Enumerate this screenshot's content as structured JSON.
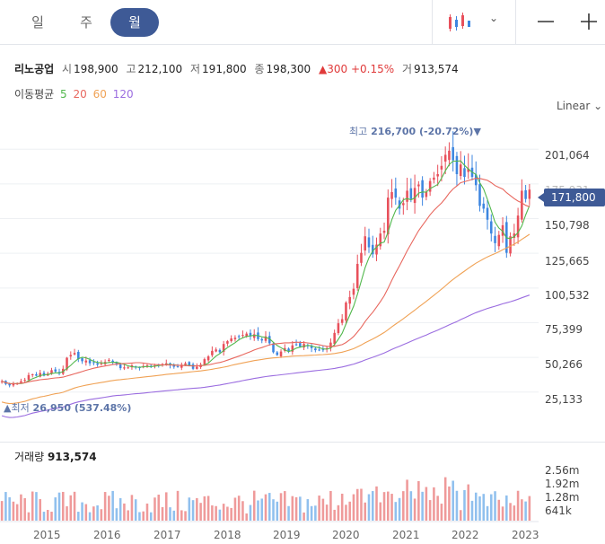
{
  "period_tabs": [
    {
      "label": "일",
      "active": false
    },
    {
      "label": "주",
      "active": false
    },
    {
      "label": "월",
      "active": true
    }
  ],
  "stock": {
    "name": "리노공업",
    "open_label": "시",
    "open": "198,900",
    "high_label": "고",
    "high": "212,100",
    "low_label": "저",
    "low": "191,800",
    "close_label": "종",
    "close": "198,300",
    "change": "▲300 +0.15%",
    "volume_label": "거",
    "volume": "913,574"
  },
  "ma_legend": {
    "label": "이동평균",
    "items": [
      {
        "label": "5",
        "color": "#52b84d"
      },
      {
        "label": "20",
        "color": "#e8675e"
      },
      {
        "label": "60",
        "color": "#f0a255"
      },
      {
        "label": "120",
        "color": "#9b6de0"
      }
    ]
  },
  "scale_mode": "Linear ⌄",
  "colors": {
    "up": "#e8505b",
    "down": "#3d86e0",
    "accent": "#3e5a96",
    "vol_up": "#ef9a9a",
    "vol_down": "#90c0ee"
  },
  "chart_data": {
    "type": "candlestick",
    "x_labels": [
      "2015",
      "2016",
      "2017",
      "2018",
      "2019",
      "2020",
      "2021",
      "2022",
      "2023"
    ],
    "y_ticks": [
      "201,064",
      "175,931",
      "150,798",
      "125,665",
      "100,532",
      "75,399",
      "50,266",
      "25,133"
    ],
    "current_price": "171,800",
    "max_annotation": {
      "label": "최고",
      "value": "216,700 (-20.72%)▼"
    },
    "min_annotation": {
      "label": "▲최저",
      "value": "26,950 (537.48%)"
    },
    "closes": [
      33000,
      31000,
      30000,
      31000,
      31500,
      33000,
      34000,
      37500,
      38000,
      37000,
      39000,
      37000,
      38500,
      41000,
      40000,
      38500,
      42000,
      50000,
      52000,
      53500,
      49000,
      47500,
      48000,
      46000,
      46500,
      45000,
      46000,
      47000,
      48500,
      47000,
      45000,
      42500,
      43000,
      43000,
      44500,
      43000,
      42500,
      44000,
      44500,
      44000,
      44500,
      45000,
      45500,
      46000,
      44500,
      43500,
      43500,
      45000,
      46000,
      44500,
      42000,
      43500,
      45000,
      49000,
      51000,
      55000,
      56000,
      54000,
      60000,
      62000,
      64000,
      64500,
      65000,
      66500,
      67500,
      65500,
      67000,
      63500,
      62500,
      65500,
      60500,
      54000,
      52000,
      54500,
      57000,
      55000,
      59000,
      59500,
      58000,
      60000,
      58500,
      57000,
      55500,
      55500,
      56000,
      57000,
      61000,
      68000,
      75000,
      78000,
      90000,
      94000,
      100000,
      118000,
      126000,
      138000,
      130000,
      125000,
      132000,
      140000,
      142000,
      166000,
      170000,
      166000,
      158000,
      162000,
      171000,
      165000,
      173000,
      175500,
      166000,
      170000,
      178000,
      180500,
      183000,
      189000,
      197000,
      200000,
      193000,
      183000,
      190000,
      181000,
      187000,
      181000,
      175000,
      160000,
      158000,
      150000,
      140000,
      133000,
      139000,
      146000,
      126000,
      138000,
      140000,
      153000,
      171000,
      165000,
      171800
    ],
    "ma_series": [
      {
        "name": "5",
        "color": "#52b84d"
      },
      {
        "name": "20",
        "color": "#e8675e"
      },
      {
        "name": "60",
        "color": "#f0a255"
      },
      {
        "name": "120",
        "color": "#9b6de0"
      }
    ],
    "volume_label": "거래량",
    "volume_value": "913,574",
    "volume_ticks": [
      "2.56m",
      "1.92m",
      "1.28m",
      "641k"
    ]
  }
}
